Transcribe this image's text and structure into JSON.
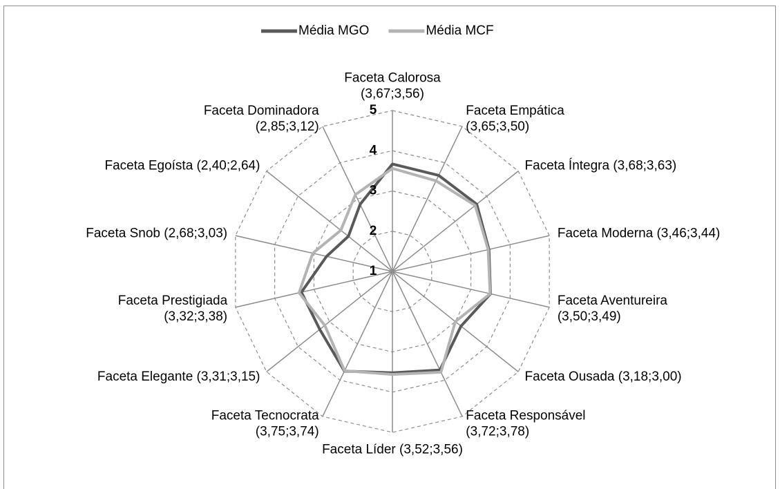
{
  "chart_data": {
    "type": "radar",
    "categories": [
      [
        "Faceta Calorosa",
        "(3,67;3,56)"
      ],
      [
        "Faceta Empática",
        "(3,65;3,50)"
      ],
      [
        "Faceta Íntegra (3,68;3,63)"
      ],
      [
        "Faceta Moderna (3,46;3,44)"
      ],
      [
        "Faceta Aventureira",
        "(3,50;3,49)"
      ],
      [
        "Faceta Ousada (3,18;3,00)"
      ],
      [
        "Faceta Responsável",
        "(3,72;3,78)"
      ],
      [
        "Faceta Líder (3,52;3,56)"
      ],
      [
        "Faceta Tecnocrata",
        "(3,75;3,74)"
      ],
      [
        "Faceta Elegante (3,31;3,15)"
      ],
      [
        "Faceta Prestigiada",
        "(3,32;3,38)"
      ],
      [
        "Faceta Snob (2,68;3,03)"
      ],
      [
        "Faceta Egoísta (2,40;2,64)"
      ],
      [
        "Faceta Dominadora",
        "(2,85;3,12)"
      ]
    ],
    "series": [
      {
        "name": "Média MGO",
        "color": "#595959",
        "values": [
          3.67,
          3.65,
          3.68,
          3.46,
          3.5,
          3.18,
          3.72,
          3.52,
          3.75,
          3.31,
          3.32,
          2.68,
          2.4,
          2.85
        ]
      },
      {
        "name": "Média MCF",
        "color": "#b3b3b3",
        "values": [
          3.56,
          3.5,
          3.63,
          3.44,
          3.49,
          3.0,
          3.78,
          3.56,
          3.74,
          3.15,
          3.38,
          3.03,
          2.64,
          3.12
        ]
      }
    ],
    "rlim": [
      1,
      5
    ],
    "rticks": [
      1,
      2,
      3,
      4,
      5
    ],
    "legend": "top"
  }
}
